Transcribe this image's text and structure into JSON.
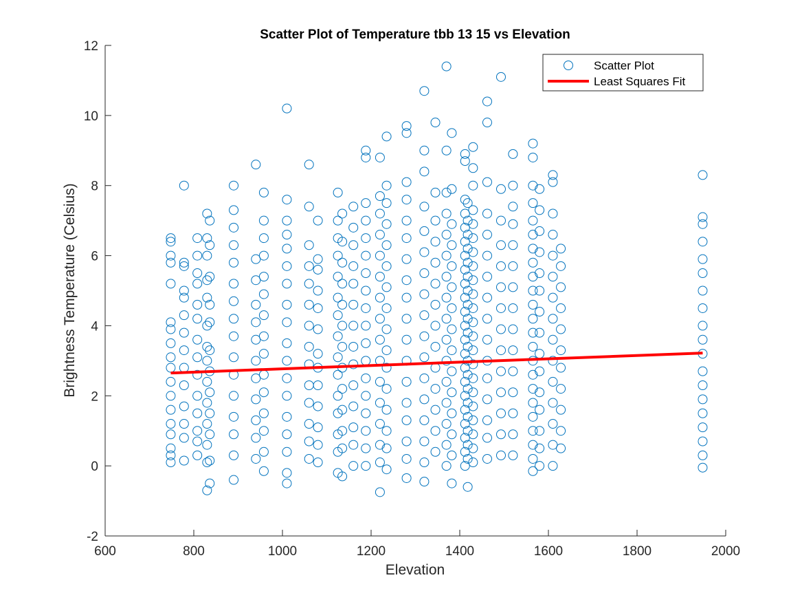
{
  "chart_data": {
    "type": "scatter",
    "title": "Scatter Plot of Temperature tbb 13 15 vs Elevation",
    "xlabel": "Elevation",
    "ylabel": "Brightness Temperature (Celsius)",
    "xlim": [
      600,
      2000
    ],
    "ylim": [
      -2,
      12
    ],
    "xticks": [
      "600",
      "800",
      "1000",
      "1200",
      "1400",
      "1600",
      "1800",
      "2000"
    ],
    "yticks": [
      "-2",
      "0",
      "2",
      "4",
      "6",
      "8",
      "10",
      "12"
    ],
    "grid": false,
    "legend_location": "top-right",
    "marker_color": "#0072BD",
    "fit_color": "#FF0000",
    "series": [
      {
        "name": "Scatter Plot",
        "kind": "markers",
        "columns": [
          {
            "x": 748,
            "y": [
              0.1,
              0.3,
              0.5,
              0.9,
              1.2,
              1.6,
              2.0,
              2.4,
              2.8,
              3.1,
              3.5,
              3.9,
              4.1,
              5.2,
              5.8,
              6.0,
              6.4,
              6.5
            ]
          },
          {
            "x": 778,
            "y": [
              0.15,
              0.8,
              1.2,
              1.7,
              2.3,
              2.8,
              3.3,
              3.8,
              4.3,
              4.8,
              5.0,
              5.7,
              5.8,
              8.0
            ]
          },
          {
            "x": 808,
            "y": [
              0.3,
              0.7,
              1.0,
              1.5,
              2.0,
              2.6,
              3.1,
              3.6,
              4.2,
              4.6,
              5.2,
              5.5,
              6.0,
              6.5
            ]
          },
          {
            "x": 830,
            "y": [
              -0.7,
              0.1,
              0.6,
              1.2,
              1.8,
              2.4,
              3.0,
              3.4,
              4.0,
              4.8,
              5.3,
              6.0,
              6.5,
              7.2
            ]
          },
          {
            "x": 836,
            "y": [
              -0.5,
              0.15,
              0.9,
              1.5,
              2.1,
              2.7,
              3.3,
              4.1,
              4.6,
              5.4,
              6.3,
              7.0
            ]
          },
          {
            "x": 890,
            "y": [
              -0.4,
              0.3,
              0.9,
              1.4,
              2.0,
              2.6,
              3.1,
              3.7,
              4.2,
              4.7,
              5.2,
              5.8,
              6.3,
              6.8,
              7.3,
              8.0
            ]
          },
          {
            "x": 940,
            "y": [
              0.2,
              0.8,
              1.3,
              1.9,
              2.5,
              3.0,
              3.6,
              4.1,
              4.6,
              5.3,
              5.9,
              8.6
            ]
          },
          {
            "x": 958,
            "y": [
              -0.15,
              0.4,
              1.0,
              1.5,
              2.1,
              2.6,
              3.2,
              3.7,
              4.3,
              4.9,
              5.4,
              6.0,
              6.5,
              7.0,
              7.8
            ]
          },
          {
            "x": 1010,
            "y": [
              -0.5,
              -0.2,
              0.4,
              0.9,
              1.4,
              2.0,
              2.5,
              3.0,
              3.5,
              4.1,
              4.6,
              5.2,
              5.7,
              6.2,
              6.6,
              7.0,
              7.6,
              10.2
            ]
          },
          {
            "x": 1060,
            "y": [
              0.2,
              0.7,
              1.2,
              1.8,
              2.3,
              2.9,
              3.4,
              4.0,
              4.6,
              5.2,
              5.7,
              6.3,
              7.4,
              8.6
            ]
          },
          {
            "x": 1080,
            "y": [
              0.1,
              0.6,
              1.1,
              1.7,
              2.3,
              2.8,
              3.2,
              3.9,
              4.5,
              5.0,
              5.6,
              5.9,
              7.0
            ]
          },
          {
            "x": 1125,
            "y": [
              -0.2,
              0.4,
              0.9,
              1.5,
              2.0,
              2.6,
              3.1,
              3.7,
              4.3,
              4.8,
              5.4,
              6.0,
              6.5,
              7.0,
              7.8
            ]
          },
          {
            "x": 1135,
            "y": [
              -0.3,
              0.5,
              1.0,
              1.6,
              2.2,
              2.8,
              3.4,
              4.0,
              4.6,
              5.2,
              5.8,
              6.4,
              7.2
            ]
          },
          {
            "x": 1160,
            "y": [
              0.0,
              0.6,
              1.1,
              1.7,
              2.3,
              2.9,
              3.4,
              4.0,
              4.6,
              5.2,
              5.7,
              6.3,
              6.8,
              7.4
            ]
          },
          {
            "x": 1188,
            "y": [
              0.0,
              0.5,
              1.0,
              1.5,
              2.0,
              2.5,
              3.0,
              3.5,
              4.0,
              4.5,
              5.0,
              5.5,
              6.0,
              6.5,
              7.0,
              7.5,
              8.8,
              9.0
            ]
          },
          {
            "x": 1220,
            "y": [
              -0.75,
              0.1,
              0.6,
              1.2,
              1.8,
              2.4,
              3.0,
              3.6,
              4.2,
              4.8,
              5.4,
              6.0,
              6.6,
              7.2,
              7.7,
              8.8
            ]
          },
          {
            "x": 1235,
            "y": [
              -0.1,
              0.5,
              1.0,
              1.6,
              2.2,
              2.8,
              3.3,
              3.9,
              4.5,
              5.1,
              5.7,
              6.3,
              6.9,
              7.5,
              8.0,
              9.4
            ]
          },
          {
            "x": 1280,
            "y": [
              -0.35,
              0.2,
              0.7,
              1.3,
              1.8,
              2.4,
              3.0,
              3.6,
              4.2,
              4.8,
              5.3,
              5.9,
              6.5,
              7.0,
              7.6,
              8.1,
              9.5,
              9.7
            ]
          },
          {
            "x": 1320,
            "y": [
              -0.45,
              0.1,
              0.7,
              1.3,
              1.9,
              2.5,
              3.1,
              3.7,
              4.3,
              4.9,
              5.5,
              6.1,
              6.7,
              7.4,
              8.4,
              9.0,
              10.7
            ]
          },
          {
            "x": 1345,
            "y": [
              0.4,
              1.0,
              1.6,
              2.2,
              2.8,
              3.4,
              4.0,
              4.6,
              5.2,
              5.8,
              6.4,
              7.0,
              7.8,
              9.8
            ]
          },
          {
            "x": 1370,
            "y": [
              0.0,
              0.6,
              1.2,
              1.8,
              2.4,
              3.0,
              3.6,
              4.2,
              4.8,
              5.4,
              6.0,
              6.6,
              7.2,
              7.8,
              9.0,
              11.4
            ]
          },
          {
            "x": 1382,
            "y": [
              -0.5,
              0.3,
              0.9,
              1.5,
              2.1,
              2.7,
              3.3,
              3.9,
              4.5,
              5.1,
              5.7,
              6.3,
              6.9,
              7.9,
              9.5
            ]
          },
          {
            "x": 1412,
            "y": [
              0.0,
              0.4,
              0.8,
              1.2,
              1.6,
              2.0,
              2.4,
              2.8,
              3.2,
              3.6,
              4.0,
              4.4,
              4.8,
              5.2,
              5.6,
              6.0,
              6.4,
              6.8,
              7.2,
              7.6,
              8.7,
              8.9
            ]
          },
          {
            "x": 1418,
            "y": [
              -0.6,
              0.2,
              0.6,
              1.0,
              1.4,
              1.8,
              2.2,
              2.6,
              3.0,
              3.4,
              3.8,
              4.2,
              4.6,
              5.0,
              5.4,
              5.8,
              6.2,
              6.6,
              7.0,
              7.5
            ]
          },
          {
            "x": 1430,
            "y": [
              0.1,
              0.5,
              0.9,
              1.3,
              1.7,
              2.1,
              2.5,
              2.9,
              3.3,
              3.7,
              4.1,
              4.5,
              4.9,
              5.3,
              5.7,
              6.1,
              6.5,
              6.9,
              7.3,
              8.0,
              8.5,
              9.1
            ]
          },
          {
            "x": 1462,
            "y": [
              0.2,
              0.8,
              1.3,
              1.9,
              2.5,
              3.0,
              3.6,
              4.2,
              4.8,
              5.4,
              6.0,
              6.6,
              7.2,
              8.1,
              9.8,
              10.4
            ]
          },
          {
            "x": 1493,
            "y": [
              0.3,
              0.9,
              1.5,
              2.1,
              2.7,
              3.3,
              3.9,
              4.5,
              5.1,
              5.7,
              6.3,
              7.0,
              7.9,
              11.1
            ]
          },
          {
            "x": 1520,
            "y": [
              0.3,
              0.9,
              1.5,
              2.1,
              2.7,
              3.3,
              3.9,
              4.5,
              5.1,
              5.7,
              6.3,
              6.9,
              7.4,
              8.0,
              8.9
            ]
          },
          {
            "x": 1565,
            "y": [
              -0.15,
              0.2,
              0.6,
              1.0,
              1.4,
              1.8,
              2.2,
              2.6,
              3.0,
              3.4,
              3.8,
              4.2,
              4.6,
              5.0,
              5.4,
              5.8,
              6.2,
              6.6,
              7.0,
              7.5,
              8.0,
              8.8,
              9.2
            ]
          },
          {
            "x": 1580,
            "y": [
              0.0,
              0.5,
              1.0,
              1.6,
              2.1,
              2.7,
              3.2,
              3.8,
              4.4,
              5.0,
              5.5,
              6.1,
              6.7,
              7.3,
              7.9
            ]
          },
          {
            "x": 1610,
            "y": [
              0.0,
              0.6,
              1.2,
              1.8,
              2.4,
              3.0,
              3.6,
              4.2,
              4.8,
              5.4,
              6.0,
              6.6,
              7.2,
              8.1,
              8.3
            ]
          },
          {
            "x": 1628,
            "y": [
              0.5,
              1.0,
              1.6,
              2.2,
              2.8,
              3.3,
              3.9,
              4.5,
              5.1,
              5.7,
              6.2
            ]
          },
          {
            "x": 1948,
            "y": [
              -0.05,
              0.3,
              0.7,
              1.1,
              1.5,
              1.9,
              2.3,
              2.7,
              3.2,
              3.6,
              4.0,
              4.5,
              5.0,
              5.5,
              5.9,
              6.4,
              6.9,
              7.1,
              8.3
            ]
          }
        ]
      },
      {
        "name": "Least Squares Fit",
        "kind": "line",
        "x": [
          748,
          1948
        ],
        "y": [
          2.65,
          3.22
        ]
      }
    ]
  }
}
